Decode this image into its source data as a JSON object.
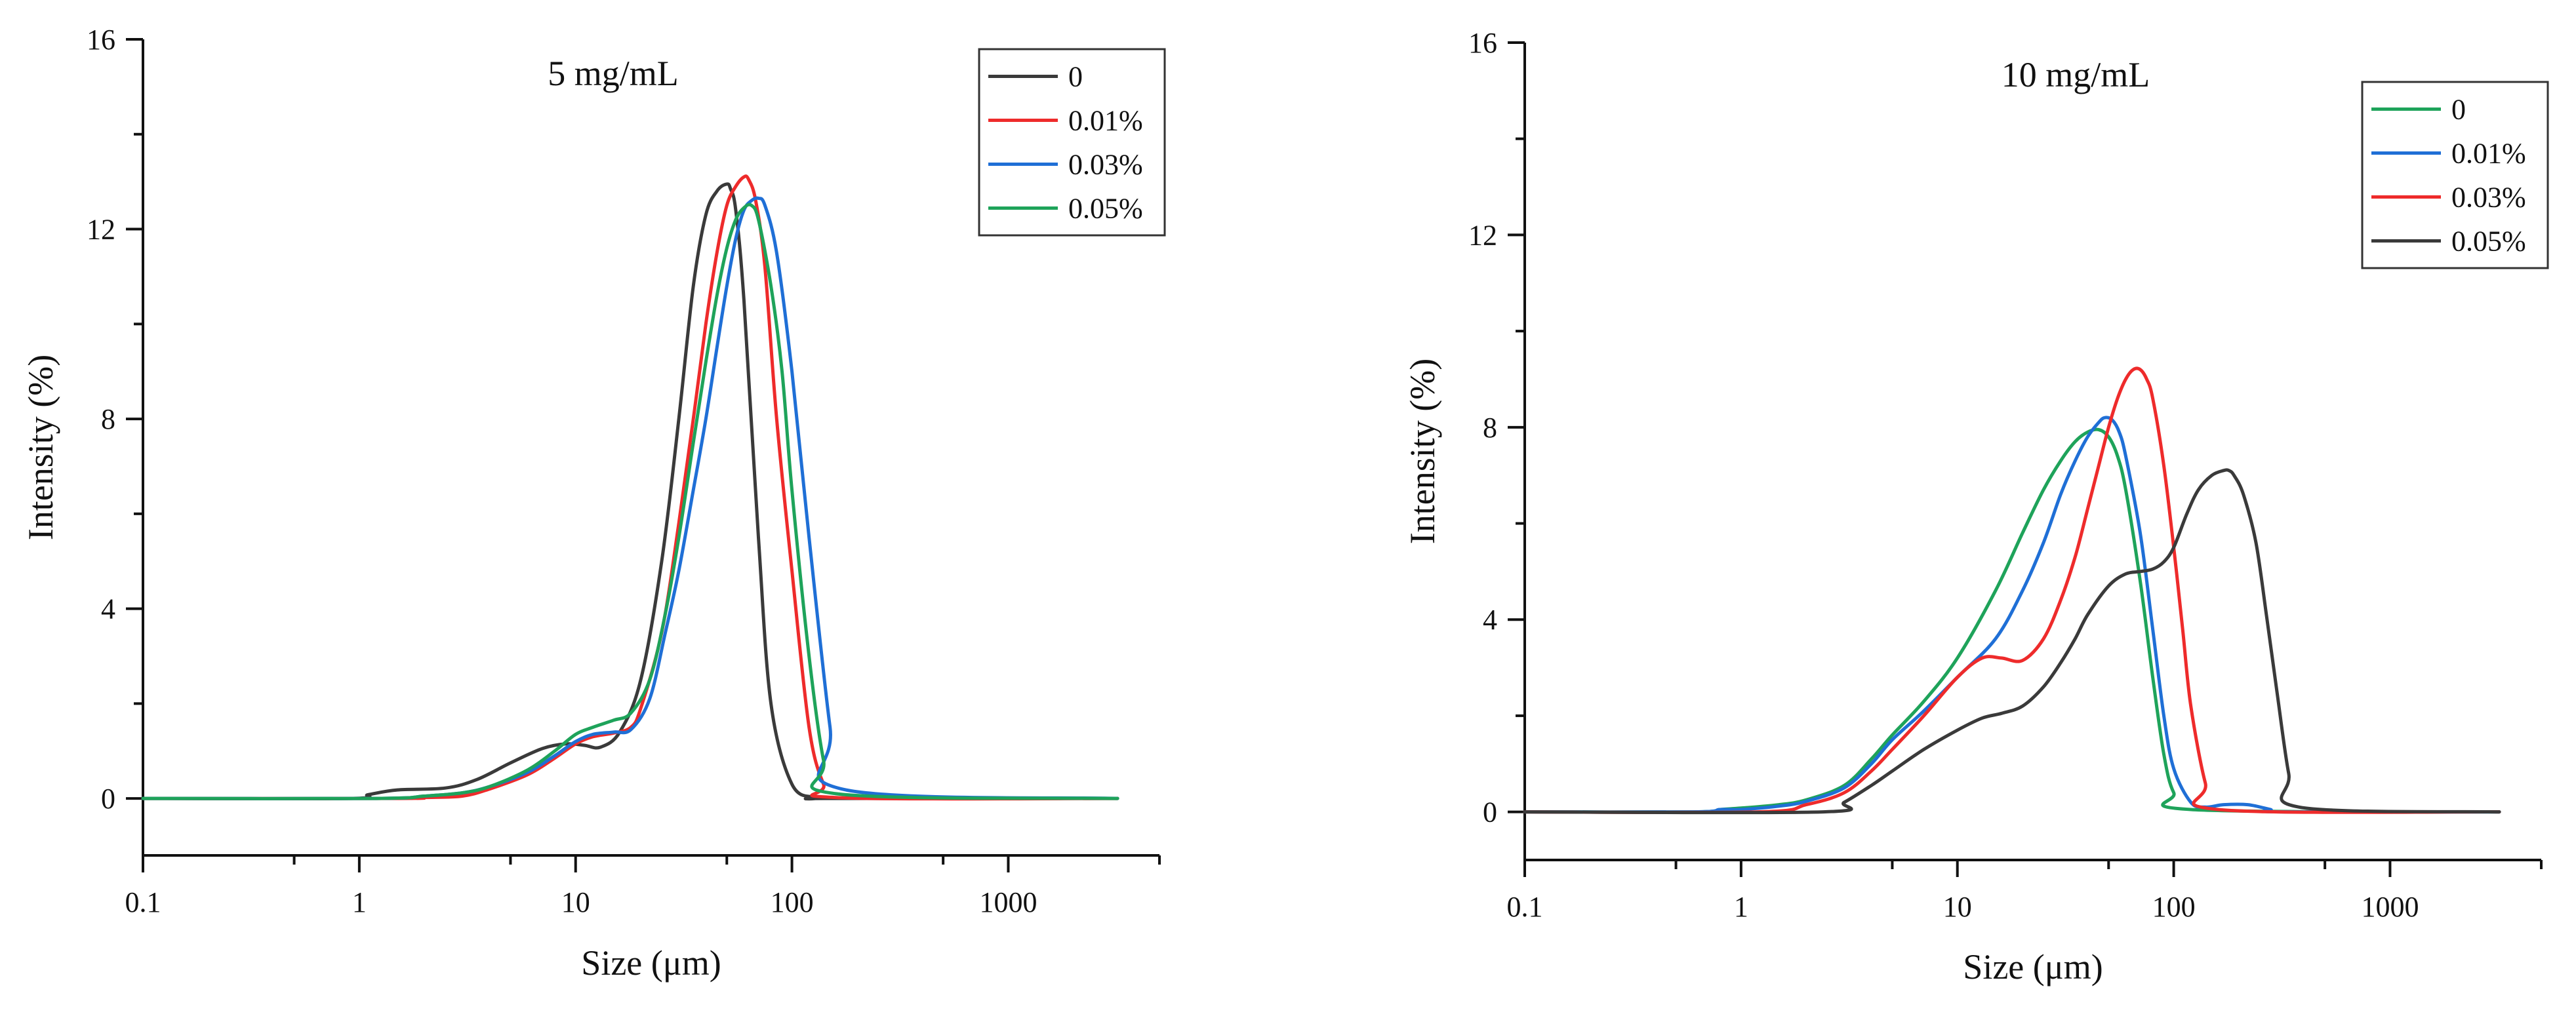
{
  "chart_data": [
    {
      "type": "line",
      "title": "5 mg/mL",
      "xlabel": "Size (μm)",
      "ylabel": "Intensity (%)",
      "xscale": "log",
      "xlim": [
        0.1,
        5000
      ],
      "ylim": [
        -1.2,
        16
      ],
      "xticks": [
        0.1,
        1,
        10,
        100,
        1000
      ],
      "xtick_labels": [
        "0.1",
        "1",
        "10",
        "100",
        "1000"
      ],
      "yticks": [
        0,
        4,
        8,
        12,
        16
      ],
      "ytick_labels": [
        "0",
        "4",
        "8",
        "12",
        "16"
      ],
      "grid": false,
      "legend_position": "top-right",
      "series": [
        {
          "name": "0",
          "color": "#3a3a3a",
          "x": [
            0.1,
            0.9,
            1.1,
            1.5,
            2.5,
            3.5,
            5,
            7,
            9,
            11,
            13,
            16,
            20,
            25,
            30,
            35,
            40,
            45,
            50,
            52,
            55,
            60,
            70,
            80,
            100,
            130,
            150,
            3200
          ],
          "y": [
            0,
            0,
            0.08,
            0.18,
            0.22,
            0.4,
            0.75,
            1.05,
            1.15,
            1.12,
            1.08,
            1.4,
            2.5,
            5,
            8,
            10.8,
            12.3,
            12.8,
            12.95,
            12.85,
            12.4,
            10.5,
            5.5,
            2,
            0.3,
            0.02,
            0,
            0
          ]
        },
        {
          "name": "0.01%",
          "color": "#ee2b2b",
          "x": [
            0.1,
            1.5,
            2,
            3,
            4,
            6,
            8,
            10,
            12,
            15,
            18,
            20,
            25,
            30,
            35,
            40,
            45,
            50,
            55,
            60,
            63,
            68,
            75,
            85,
            100,
            120,
            140,
            160,
            3200
          ],
          "y": [
            0,
            0,
            0.02,
            0.05,
            0.2,
            0.5,
            0.85,
            1.15,
            1.3,
            1.38,
            1.5,
            1.9,
            3.5,
            5.8,
            8,
            10,
            11.5,
            12.5,
            12.9,
            13.1,
            13.05,
            12.6,
            11.2,
            8,
            4.8,
            1.5,
            0.3,
            0.02,
            0
          ]
        },
        {
          "name": "0.03%",
          "color": "#1f6fd6",
          "x": [
            0.1,
            1.2,
            2,
            3,
            4,
            6,
            8,
            10,
            12,
            15,
            18,
            22,
            26,
            30,
            35,
            40,
            45,
            50,
            55,
            60,
            65,
            70,
            75,
            85,
            100,
            120,
            150,
            170,
            3200
          ],
          "y": [
            0,
            0,
            0.05,
            0.12,
            0.25,
            0.55,
            0.9,
            1.2,
            1.35,
            1.4,
            1.45,
            2.1,
            3.5,
            4.8,
            6.5,
            8,
            9.5,
            10.8,
            11.8,
            12.4,
            12.6,
            12.65,
            12.5,
            11.5,
            9,
            5.5,
            1.5,
            0.2,
            0
          ]
        },
        {
          "name": "0.05%",
          "color": "#1ea35a",
          "x": [
            0.1,
            1.2,
            2,
            3,
            4,
            6,
            8,
            10,
            12,
            15,
            18,
            22,
            26,
            30,
            35,
            40,
            45,
            50,
            55,
            60,
            65,
            70,
            80,
            90,
            100,
            120,
            140,
            160,
            3200
          ],
          "y": [
            0,
            0,
            0.05,
            0.12,
            0.25,
            0.6,
            1,
            1.35,
            1.5,
            1.65,
            1.8,
            2.5,
            3.9,
            5.5,
            7.5,
            9.2,
            10.6,
            11.6,
            12.2,
            12.45,
            12.5,
            12.2,
            10.8,
            9,
            6.5,
            3,
            0.8,
            0.1,
            0
          ]
        }
      ]
    },
    {
      "type": "line",
      "title": "10 mg/mL",
      "xlabel": "Size (μm)",
      "ylabel": "Intensity (%)",
      "xscale": "log",
      "xlim": [
        0.1,
        5000
      ],
      "ylim": [
        -1,
        16
      ],
      "xticks": [
        0.1,
        1,
        10,
        100,
        1000
      ],
      "xtick_labels": [
        "0.1",
        "1",
        "10",
        "100",
        "1000"
      ],
      "yticks": [
        0,
        4,
        8,
        12,
        16
      ],
      "ytick_labels": [
        "0",
        "4",
        "8",
        "12",
        "16"
      ],
      "grid": false,
      "legend_position": "top-right",
      "series": [
        {
          "name": "0",
          "color": "#1ea35a",
          "x": [
            0.1,
            0.6,
            0.8,
            1,
            1.5,
            2,
            3,
            4,
            5,
            7,
            10,
            15,
            20,
            25,
            30,
            35,
            40,
            45,
            50,
            55,
            60,
            70,
            80,
            90,
            100,
            120,
            3200
          ],
          "y": [
            0,
            0,
            0.05,
            0.08,
            0.15,
            0.25,
            0.55,
            1.1,
            1.6,
            2.3,
            3.2,
            4.6,
            5.8,
            6.7,
            7.3,
            7.7,
            7.9,
            7.95,
            7.8,
            7.4,
            6.7,
            4.8,
            2.8,
            1.2,
            0.4,
            0.05,
            0
          ]
        },
        {
          "name": "0.01%",
          "color": "#1f6fd6",
          "x": [
            0.1,
            0.6,
            0.8,
            1,
            1.5,
            2,
            3,
            4,
            5,
            7,
            10,
            15,
            20,
            25,
            30,
            35,
            40,
            45,
            48,
            52,
            56,
            60,
            70,
            80,
            90,
            100,
            120,
            140,
            170,
            220,
            280,
            320,
            3200
          ],
          "y": [
            0,
            0,
            0.05,
            0.05,
            0.12,
            0.22,
            0.5,
            1,
            1.5,
            2.1,
            2.8,
            3.6,
            4.6,
            5.6,
            6.6,
            7.3,
            7.8,
            8.1,
            8.2,
            8.15,
            7.9,
            7.4,
            5.8,
            3.8,
            2,
            0.9,
            0.2,
            0.1,
            0.15,
            0.15,
            0.05,
            0,
            0
          ]
        },
        {
          "name": "0.03%",
          "color": "#ee2b2b",
          "x": [
            0.1,
            1.2,
            2,
            3,
            4,
            5,
            7,
            10,
            13,
            16,
            20,
            25,
            30,
            35,
            40,
            45,
            50,
            55,
            60,
            65,
            70,
            75,
            80,
            90,
            100,
            110,
            120,
            140,
            160,
            3200
          ],
          "y": [
            0,
            0,
            0.15,
            0.4,
            0.85,
            1.3,
            2,
            2.8,
            3.2,
            3.2,
            3.15,
            3.6,
            4.4,
            5.3,
            6.3,
            7.2,
            8,
            8.6,
            9,
            9.2,
            9.2,
            9,
            8.6,
            7.2,
            5.5,
            3.8,
            2.2,
            0.6,
            0.05,
            0
          ]
        },
        {
          "name": "0.05%",
          "color": "#3a3a3a",
          "x": [
            0.1,
            2.4,
            3,
            4,
            5,
            7,
            10,
            13,
            16,
            20,
            25,
            30,
            35,
            40,
            50,
            60,
            70,
            80,
            90,
            100,
            115,
            130,
            150,
            170,
            180,
            190,
            210,
            240,
            270,
            300,
            340,
            380,
            3200
          ],
          "y": [
            0,
            0,
            0.2,
            0.55,
            0.85,
            1.3,
            1.7,
            1.95,
            2.05,
            2.2,
            2.6,
            3.1,
            3.6,
            4.1,
            4.7,
            4.95,
            5,
            5.05,
            5.2,
            5.5,
            6.2,
            6.7,
            7,
            7.1,
            7.1,
            7,
            6.6,
            5.6,
            4,
            2.5,
            0.8,
            0.1,
            0
          ]
        }
      ]
    }
  ]
}
